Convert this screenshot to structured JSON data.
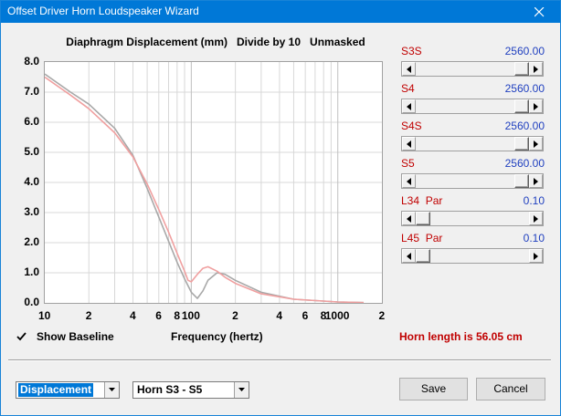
{
  "window": {
    "title": "Offset Driver Horn Loudspeaker Wizard"
  },
  "plot": {
    "title": "Diaphragm Displacement (mm)   Divide by 10   Unmasked",
    "xlabel": "Frequency (hertz)",
    "show_baseline_label": "Show Baseline",
    "show_baseline_checked": true,
    "horn_length_text": "Horn length is 56.05 cm"
  },
  "chart_data": {
    "type": "line",
    "title": "Diaphragm Displacement (mm)   Divide by 10   Unmasked",
    "xlabel": "Frequency (hertz)",
    "ylabel": "",
    "xscale": "log",
    "xlim": [
      10,
      2000
    ],
    "ylim": [
      0,
      8
    ],
    "grid": true,
    "yticks": [
      "8.0",
      "7.0",
      "6.0",
      "5.0",
      "4.0",
      "3.0",
      "2.0",
      "1.0",
      "0.0"
    ],
    "xticks": [
      "10",
      "2",
      "4",
      "6",
      "8",
      "100",
      "2",
      "4",
      "6",
      "8",
      "1000",
      "2"
    ],
    "series": [
      {
        "color": "#a8a8a8",
        "x": [
          10,
          15,
          20,
          30,
          40,
          50,
          60,
          70,
          80,
          90,
          100,
          110,
          120,
          130,
          150,
          170,
          200,
          300,
          500,
          1000,
          1500
        ],
        "y": [
          7.6,
          7.0,
          6.6,
          5.8,
          4.9,
          3.8,
          2.85,
          2.05,
          1.35,
          0.8,
          0.35,
          0.15,
          0.4,
          0.75,
          1.0,
          0.95,
          0.75,
          0.35,
          0.12,
          0.03,
          0.01
        ]
      },
      {
        "color": "#f0a0a0",
        "x": [
          10,
          15,
          20,
          30,
          40,
          50,
          60,
          70,
          80,
          90,
          95,
          100,
          110,
          120,
          130,
          150,
          170,
          200,
          300,
          500,
          1000,
          1500
        ],
        "y": [
          7.5,
          6.9,
          6.45,
          5.65,
          4.85,
          3.95,
          3.1,
          2.35,
          1.65,
          1.05,
          0.75,
          0.7,
          0.95,
          1.15,
          1.2,
          1.05,
          0.85,
          0.65,
          0.3,
          0.12,
          0.03,
          0.01
        ]
      }
    ]
  },
  "sliders": [
    {
      "label": "S3S",
      "value": "2560.00",
      "fraction": 1.0
    },
    {
      "label": "S4",
      "value": "2560.00",
      "fraction": 1.0
    },
    {
      "label": "S4S",
      "value": "2560.00",
      "fraction": 1.0
    },
    {
      "label": "S5",
      "value": "2560.00",
      "fraction": 1.0
    },
    {
      "label": "L34  Par",
      "value": "0.10",
      "fraction": 0.0
    },
    {
      "label": "L45  Par",
      "value": "0.10",
      "fraction": 0.0
    }
  ],
  "controls": {
    "display_select": "Displacement",
    "section_select": "Horn S3 - S5",
    "save_label": "Save",
    "cancel_label": "Cancel"
  },
  "colors": {
    "accent": "#0078d7",
    "label_red": "#c00000",
    "value_blue": "#1f3fbf"
  }
}
